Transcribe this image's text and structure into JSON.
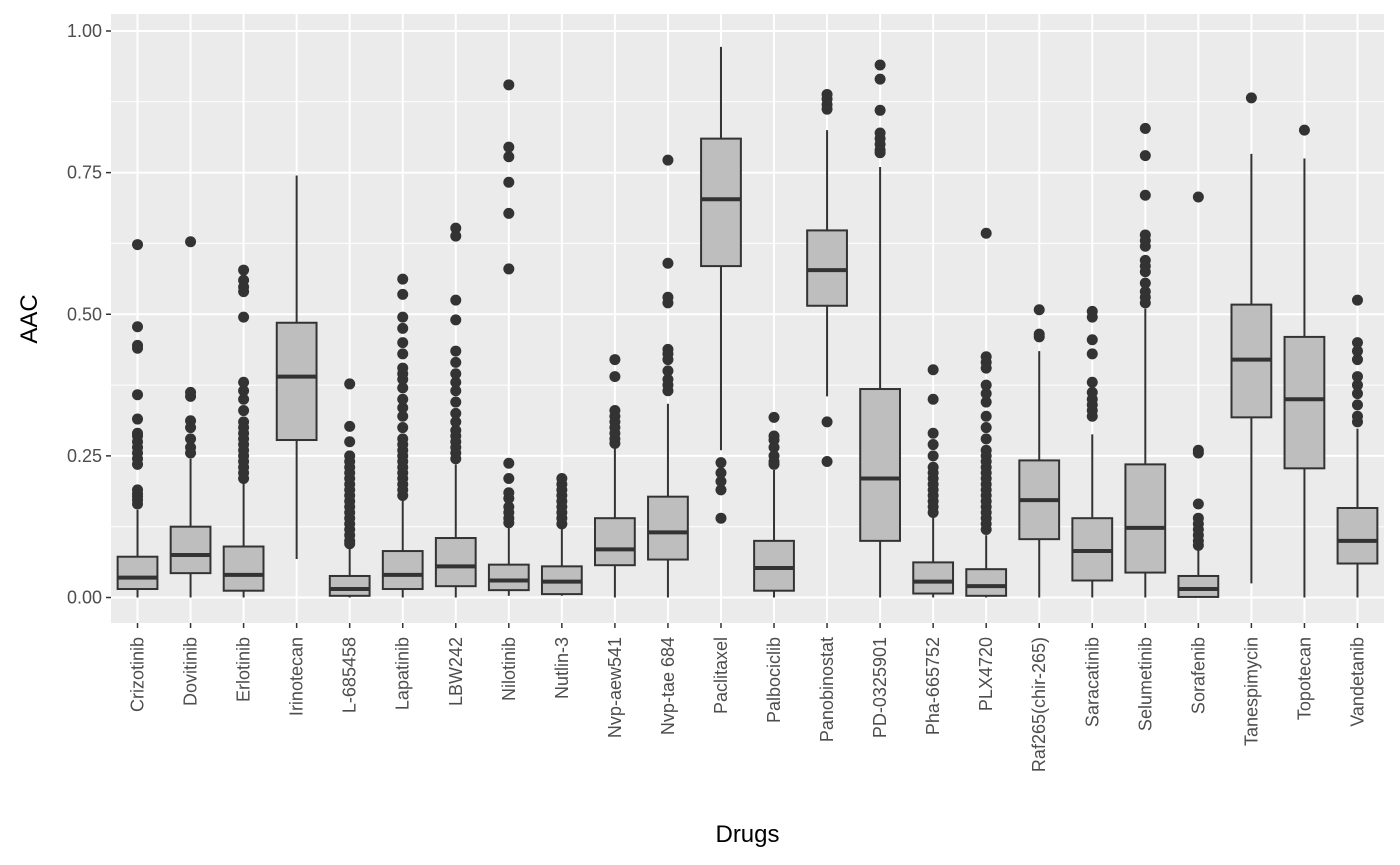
{
  "chart_data": {
    "type": "boxplot",
    "xlabel": "Drugs",
    "ylabel": "AAC",
    "ylim": [
      -0.045,
      1.03
    ],
    "yticks": [
      0.0,
      0.25,
      0.5,
      0.75,
      1.0
    ],
    "ytick_labels": [
      "0.00",
      "0.25",
      "0.50",
      "0.75",
      "1.00"
    ],
    "grid": true,
    "colors": {
      "panel": "#ebebeb",
      "grid": "#ffffff",
      "box_fill": "#bebebe",
      "stroke": "#333333",
      "text": "#4d4d4d"
    },
    "categories": [
      "Crizotinib",
      "Dovitinib",
      "Erlotinib",
      "Irinotecan",
      "L-685458",
      "Lapatinib",
      "LBW242",
      "Nilotinib",
      "Nutlin-3",
      "Nvp-aew541",
      "Nvp-tae 684",
      "Paclitaxel",
      "Palbociclib",
      "Panobinostat",
      "PD-0325901",
      "Pha-665752",
      "PLX4720",
      "Raf265(chir-265)",
      "Saracatinib",
      "Selumetinib",
      "Sorafenib",
      "Tanespimycin",
      "Topotecan",
      "Vandetanib"
    ],
    "boxes": [
      {
        "drug": "Crizotinib",
        "whisker_low": 0.0,
        "q1": 0.015,
        "median": 0.035,
        "q3": 0.072,
        "whisker_high": 0.155,
        "outliers": [
          0.165,
          0.172,
          0.178,
          0.183,
          0.19,
          0.235,
          0.245,
          0.255,
          0.265,
          0.275,
          0.285,
          0.29,
          0.315,
          0.358,
          0.44,
          0.445,
          0.478,
          0.623
        ]
      },
      {
        "drug": "Dovitinib",
        "whisker_low": 0.0,
        "q1": 0.043,
        "median": 0.075,
        "q3": 0.125,
        "whisker_high": 0.245,
        "outliers": [
          0.255,
          0.265,
          0.28,
          0.3,
          0.312,
          0.355,
          0.362,
          0.628
        ]
      },
      {
        "drug": "Erlotinib",
        "whisker_low": 0.0,
        "q1": 0.012,
        "median": 0.04,
        "q3": 0.09,
        "whisker_high": 0.205,
        "outliers": [
          0.21,
          0.22,
          0.23,
          0.24,
          0.25,
          0.26,
          0.27,
          0.28,
          0.29,
          0.3,
          0.31,
          0.33,
          0.35,
          0.365,
          0.38,
          0.495,
          0.54,
          0.548,
          0.56,
          0.578
        ]
      },
      {
        "drug": "Irinotecan",
        "whisker_low": 0.068,
        "q1": 0.278,
        "median": 0.39,
        "q3": 0.485,
        "whisker_high": 0.745,
        "outliers": []
      },
      {
        "drug": "L-685458",
        "whisker_low": 0.0,
        "q1": 0.003,
        "median": 0.015,
        "q3": 0.038,
        "whisker_high": 0.09,
        "outliers": [
          0.095,
          0.1,
          0.11,
          0.12,
          0.13,
          0.14,
          0.15,
          0.16,
          0.17,
          0.18,
          0.19,
          0.2,
          0.21,
          0.22,
          0.23,
          0.24,
          0.25,
          0.275,
          0.302,
          0.377
        ]
      },
      {
        "drug": "Lapatinib",
        "whisker_low": 0.0,
        "q1": 0.015,
        "median": 0.04,
        "q3": 0.082,
        "whisker_high": 0.175,
        "outliers": [
          0.18,
          0.19,
          0.2,
          0.21,
          0.22,
          0.23,
          0.24,
          0.25,
          0.26,
          0.27,
          0.28,
          0.3,
          0.32,
          0.335,
          0.35,
          0.37,
          0.385,
          0.395,
          0.405,
          0.43,
          0.45,
          0.475,
          0.495,
          0.535,
          0.562
        ]
      },
      {
        "drug": "LBW242",
        "whisker_low": 0.0,
        "q1": 0.02,
        "median": 0.055,
        "q3": 0.105,
        "whisker_high": 0.235,
        "outliers": [
          0.245,
          0.255,
          0.265,
          0.275,
          0.285,
          0.295,
          0.31,
          0.325,
          0.345,
          0.365,
          0.38,
          0.395,
          0.415,
          0.435,
          0.49,
          0.525,
          0.638,
          0.652
        ]
      },
      {
        "drug": "Nilotinib",
        "whisker_low": 0.003,
        "q1": 0.013,
        "median": 0.03,
        "q3": 0.058,
        "whisker_high": 0.125,
        "outliers": [
          0.132,
          0.14,
          0.15,
          0.16,
          0.175,
          0.185,
          0.21,
          0.237,
          0.58,
          0.678,
          0.733,
          0.778,
          0.795,
          0.905
        ]
      },
      {
        "drug": "Nutlin-3",
        "whisker_low": 0.003,
        "q1": 0.006,
        "median": 0.028,
        "q3": 0.055,
        "whisker_high": 0.125,
        "outliers": [
          0.13,
          0.14,
          0.15,
          0.16,
          0.17,
          0.18,
          0.19,
          0.2,
          0.21
        ]
      },
      {
        "drug": "Nvp-aew541",
        "whisker_low": 0.0,
        "q1": 0.057,
        "median": 0.085,
        "q3": 0.14,
        "whisker_high": 0.265,
        "outliers": [
          0.272,
          0.28,
          0.29,
          0.3,
          0.31,
          0.32,
          0.33,
          0.39,
          0.42
        ]
      },
      {
        "drug": "Nvp-tae 684",
        "whisker_low": 0.0,
        "q1": 0.067,
        "median": 0.115,
        "q3": 0.178,
        "whisker_high": 0.342,
        "outliers": [
          0.365,
          0.375,
          0.385,
          0.4,
          0.42,
          0.43,
          0.438,
          0.52,
          0.53,
          0.59,
          0.772
        ]
      },
      {
        "drug": "Paclitaxel",
        "whisker_low": 0.26,
        "q1": 0.585,
        "median": 0.703,
        "q3": 0.81,
        "whisker_high": 0.972,
        "outliers": [
          0.14,
          0.19,
          0.205,
          0.22,
          0.238
        ]
      },
      {
        "drug": "Palbociclib",
        "whisker_low": 0.0,
        "q1": 0.012,
        "median": 0.052,
        "q3": 0.1,
        "whisker_high": 0.225,
        "outliers": [
          0.235,
          0.24,
          0.25,
          0.265,
          0.278,
          0.285,
          0.318
        ]
      },
      {
        "drug": "Panobinostat",
        "whisker_low": 0.355,
        "q1": 0.515,
        "median": 0.578,
        "q3": 0.648,
        "whisker_high": 0.825,
        "outliers": [
          0.24,
          0.31,
          0.862,
          0.87,
          0.88,
          0.888
        ]
      },
      {
        "drug": "PD-0325901",
        "whisker_low": 0.0,
        "q1": 0.1,
        "median": 0.21,
        "q3": 0.368,
        "whisker_high": 0.76,
        "outliers": [
          0.785,
          0.79,
          0.8,
          0.81,
          0.82,
          0.86,
          0.915,
          0.94
        ]
      },
      {
        "drug": "Pha-665752",
        "whisker_low": 0.0,
        "q1": 0.007,
        "median": 0.028,
        "q3": 0.062,
        "whisker_high": 0.143,
        "outliers": [
          0.15,
          0.16,
          0.17,
          0.18,
          0.19,
          0.2,
          0.21,
          0.22,
          0.23,
          0.25,
          0.27,
          0.29,
          0.35,
          0.402
        ]
      },
      {
        "drug": "PLX4720",
        "whisker_low": 0.0,
        "q1": 0.003,
        "median": 0.02,
        "q3": 0.05,
        "whisker_high": 0.11,
        "outliers": [
          0.12,
          0.13,
          0.14,
          0.15,
          0.16,
          0.17,
          0.18,
          0.19,
          0.2,
          0.21,
          0.22,
          0.23,
          0.24,
          0.25,
          0.26,
          0.28,
          0.3,
          0.32,
          0.345,
          0.36,
          0.375,
          0.405,
          0.415,
          0.425,
          0.643
        ]
      },
      {
        "drug": "Raf265(chir-265)",
        "whisker_low": 0.0,
        "q1": 0.103,
        "median": 0.172,
        "q3": 0.242,
        "whisker_high": 0.435,
        "outliers": [
          0.46,
          0.465,
          0.508
        ]
      },
      {
        "drug": "Saracatinib",
        "whisker_low": 0.0,
        "q1": 0.03,
        "median": 0.082,
        "q3": 0.14,
        "whisker_high": 0.288,
        "outliers": [
          0.32,
          0.33,
          0.34,
          0.35,
          0.362,
          0.38,
          0.43,
          0.455,
          0.495,
          0.505
        ]
      },
      {
        "drug": "Selumetinib",
        "whisker_low": 0.0,
        "q1": 0.044,
        "median": 0.123,
        "q3": 0.235,
        "whisker_high": 0.51,
        "outliers": [
          0.52,
          0.53,
          0.54,
          0.555,
          0.575,
          0.585,
          0.595,
          0.62,
          0.63,
          0.64,
          0.71,
          0.78,
          0.828
        ]
      },
      {
        "drug": "Sorafenib",
        "whisker_low": 0.0,
        "q1": 0.001,
        "median": 0.015,
        "q3": 0.038,
        "whisker_high": 0.085,
        "outliers": [
          0.092,
          0.1,
          0.11,
          0.12,
          0.13,
          0.14,
          0.165,
          0.255,
          0.26,
          0.707
        ]
      },
      {
        "drug": "Tanespimycin",
        "whisker_low": 0.025,
        "q1": 0.318,
        "median": 0.42,
        "q3": 0.517,
        "whisker_high": 0.783,
        "outliers": [
          0.882
        ]
      },
      {
        "drug": "Topotecan",
        "whisker_low": 0.0,
        "q1": 0.228,
        "median": 0.35,
        "q3": 0.46,
        "whisker_high": 0.775,
        "outliers": [
          0.825
        ]
      },
      {
        "drug": "Vandetanib",
        "whisker_low": 0.0,
        "q1": 0.06,
        "median": 0.1,
        "q3": 0.158,
        "whisker_high": 0.298,
        "outliers": [
          0.31,
          0.32,
          0.34,
          0.36,
          0.375,
          0.39,
          0.42,
          0.435,
          0.45,
          0.525
        ]
      }
    ]
  }
}
